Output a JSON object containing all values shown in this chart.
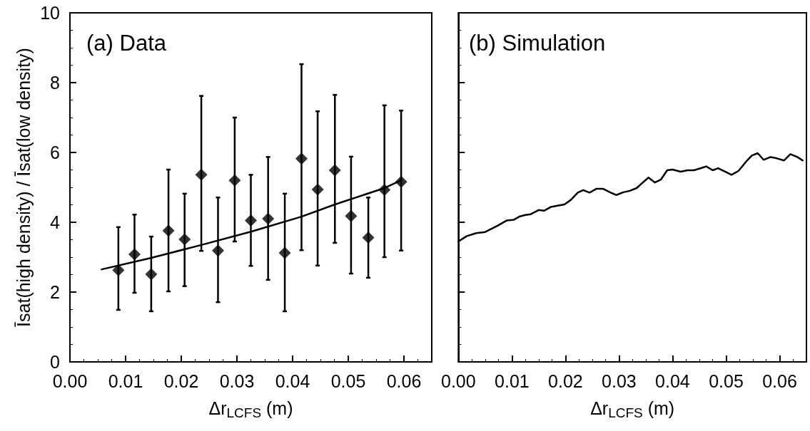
{
  "chart_data": [
    {
      "type": "scatter",
      "title": "(a) Data",
      "xlabel": "Δr$_{LCFS}$ (m)",
      "ylabel": "Īsat(high density) / Īsat(low density)",
      "xlim": [
        0,
        0.065
      ],
      "ylim": [
        0,
        10
      ],
      "xticks": [
        {
          "value": 0,
          "label": "0.00"
        },
        {
          "value": 0.01,
          "label": "0.01"
        },
        {
          "value": 0.02,
          "label": "0.02"
        },
        {
          "value": 0.03,
          "label": "0.03"
        },
        {
          "value": 0.04,
          "label": "0.04"
        },
        {
          "value": 0.05,
          "label": "0.05"
        },
        {
          "value": 0.06,
          "label": "0.06"
        }
      ],
      "yticks": [
        0,
        2,
        4,
        6,
        8,
        10
      ],
      "grid": false,
      "series": [
        {
          "color": "#000000",
          "marker": "diamond",
          "x": [
            0.0087,
            0.0116,
            0.0146,
            0.0177,
            0.0206,
            0.0236,
            0.0266,
            0.0296,
            0.0325,
            0.0356,
            0.0386,
            0.0416,
            0.0445,
            0.0476,
            0.0505,
            0.0536,
            0.0565,
            0.0595
          ],
          "values": [
            2.63,
            3.08,
            2.51,
            3.76,
            3.51,
            5.36,
            3.19,
            5.2,
            4.05,
            4.1,
            3.12,
            5.82,
            4.94,
            5.49,
            4.18,
            3.56,
            4.93,
            5.16
          ],
          "errors": [
            [
              1.49,
              3.86
            ],
            [
              1.98,
              4.22
            ],
            [
              1.45,
              3.59
            ],
            [
              2.02,
              5.51
            ],
            [
              2.17,
              4.82
            ],
            [
              3.18,
              7.62
            ],
            [
              1.71,
              4.71
            ],
            [
              3.45,
              7.0
            ],
            [
              2.75,
              5.36
            ],
            [
              2.35,
              5.87
            ],
            [
              1.45,
              4.82
            ],
            [
              3.2,
              8.53
            ],
            [
              2.76,
              7.18
            ],
            [
              3.41,
              7.65
            ],
            [
              2.53,
              5.88
            ],
            [
              2.41,
              4.71
            ],
            [
              3.0,
              7.35
            ],
            [
              3.19,
              7.2
            ]
          ]
        },
        {
          "type": "line",
          "color": "#000000",
          "marker": "none",
          "line_style": "solid",
          "x": [
            0.0057,
            0.0146,
            0.0236,
            0.0325,
            0.0416,
            0.0476,
            0.0565,
            0.0595
          ],
          "values": [
            2.65,
            2.98,
            3.35,
            3.73,
            4.16,
            4.51,
            4.98,
            5.2
          ]
        }
      ]
    },
    {
      "type": "line",
      "title": "(b) Simulation",
      "xlabel": "Δr$_{LCFS}$ (m)",
      "xlim": [
        0,
        0.065
      ],
      "ylim": [
        0,
        10
      ],
      "tick_labels": "x",
      "xticks": [
        {
          "value": 0,
          "label": "0.00"
        },
        {
          "value": 0.01,
          "label": "0.01"
        },
        {
          "value": 0.02,
          "label": "0.02"
        },
        {
          "value": 0.03,
          "label": "0.03"
        },
        {
          "value": 0.04,
          "label": "0.04"
        },
        {
          "value": 0.05,
          "label": "0.05"
        },
        {
          "value": 0.06,
          "label": "0.06"
        }
      ],
      "yticks": [
        {
          "value": 0,
          "label": null
        },
        {
          "value": 2,
          "label": null
        },
        {
          "value": 4,
          "label": null
        },
        {
          "value": 6,
          "label": null
        },
        {
          "value": 8,
          "label": null
        },
        {
          "value": 10,
          "label": null
        }
      ],
      "grid": false,
      "series": [
        {
          "color": "#000000",
          "marker": "none",
          "line_style": "solid",
          "x": [
            0,
            0.0015,
            0.0033,
            0.005,
            0.0073,
            0.009,
            0.0103,
            0.0115,
            0.0125,
            0.0135,
            0.015,
            0.016,
            0.0173,
            0.0183,
            0.0198,
            0.021,
            0.0223,
            0.0233,
            0.0245,
            0.0258,
            0.027,
            0.0283,
            0.0295,
            0.0308,
            0.032,
            0.0333,
            0.0343,
            0.0355,
            0.0367,
            0.0378,
            0.039,
            0.04,
            0.0415,
            0.0428,
            0.044,
            0.0453,
            0.0463,
            0.0475,
            0.0485,
            0.0498,
            0.051,
            0.0523,
            0.0538,
            0.0548,
            0.0559,
            0.057,
            0.0583,
            0.0595,
            0.0608,
            0.062,
            0.0633,
            0.0643
          ],
          "values": [
            3.45,
            3.6,
            3.69,
            3.72,
            3.9,
            4.05,
            4.07,
            4.17,
            4.21,
            4.23,
            4.35,
            4.33,
            4.44,
            4.47,
            4.51,
            4.64,
            4.85,
            4.92,
            4.85,
            4.96,
            4.96,
            4.86,
            4.78,
            4.86,
            4.9,
            4.98,
            5.12,
            5.28,
            5.14,
            5.22,
            5.49,
            5.51,
            5.45,
            5.49,
            5.49,
            5.55,
            5.6,
            5.49,
            5.55,
            5.45,
            5.36,
            5.47,
            5.75,
            5.91,
            5.98,
            5.79,
            5.87,
            5.83,
            5.77,
            5.95,
            5.87,
            5.77
          ]
        }
      ]
    }
  ]
}
